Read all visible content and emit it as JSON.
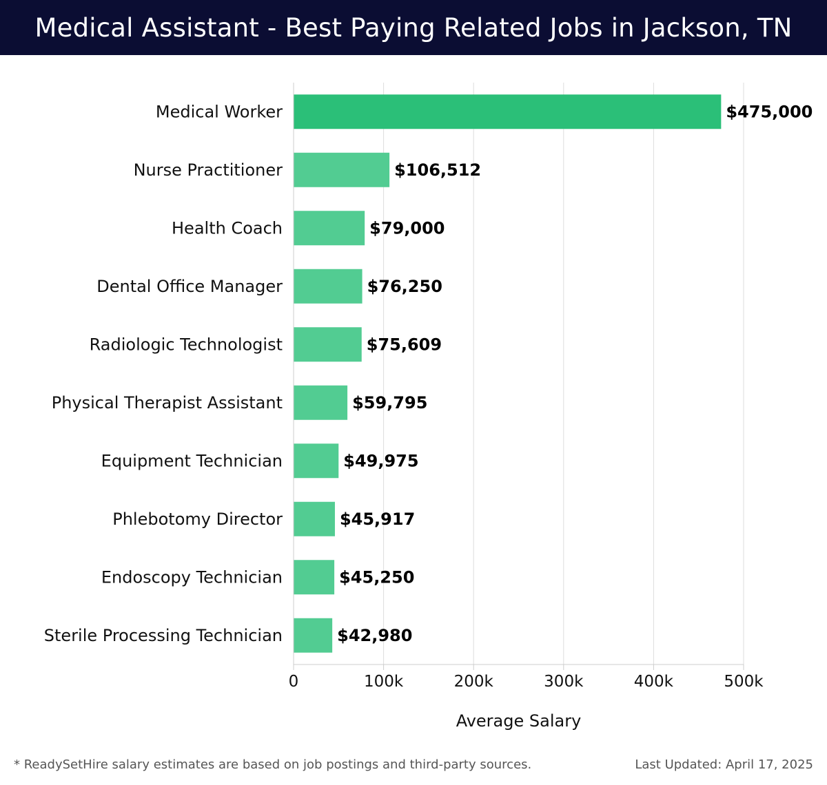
{
  "header": {
    "title": "Medical Assistant - Best Paying Related Jobs in Jackson, TN",
    "background_color": "#0b0d33"
  },
  "chart_data": {
    "type": "bar",
    "orientation": "horizontal",
    "title": "Medical Assistant - Best Paying Related Jobs in Jackson, TN",
    "xlabel": "Average Salary",
    "ylabel": "",
    "xlim": [
      0,
      500000
    ],
    "x_ticks": [
      0,
      100000,
      200000,
      300000,
      400000,
      500000
    ],
    "x_tick_labels": [
      "0",
      "100k",
      "200k",
      "300k",
      "400k",
      "500k"
    ],
    "grid": "vertical",
    "categories": [
      "Medical Worker",
      "Nurse Practitioner",
      "Health Coach",
      "Dental Office Manager",
      "Radiologic Technologist",
      "Physical Therapist Assistant",
      "Equipment Technician",
      "Phlebotomy Director",
      "Endoscopy Technician",
      "Sterile Processing Technician"
    ],
    "values": [
      475000,
      106512,
      79000,
      76250,
      75609,
      59795,
      49975,
      45917,
      45250,
      42980
    ],
    "data_labels": [
      "$475,000",
      "$106,512",
      "$79,000",
      "$76,250",
      "$75,609",
      "$59,795",
      "$49,975",
      "$45,917",
      "$45,250",
      "$42,980"
    ],
    "highlight_color": "#2bbf78",
    "bar_color": "#52cc92"
  },
  "footer": {
    "note": "* ReadySetHire salary estimates are based on job postings and third-party sources.",
    "updated": "Last Updated: April 17, 2025"
  }
}
